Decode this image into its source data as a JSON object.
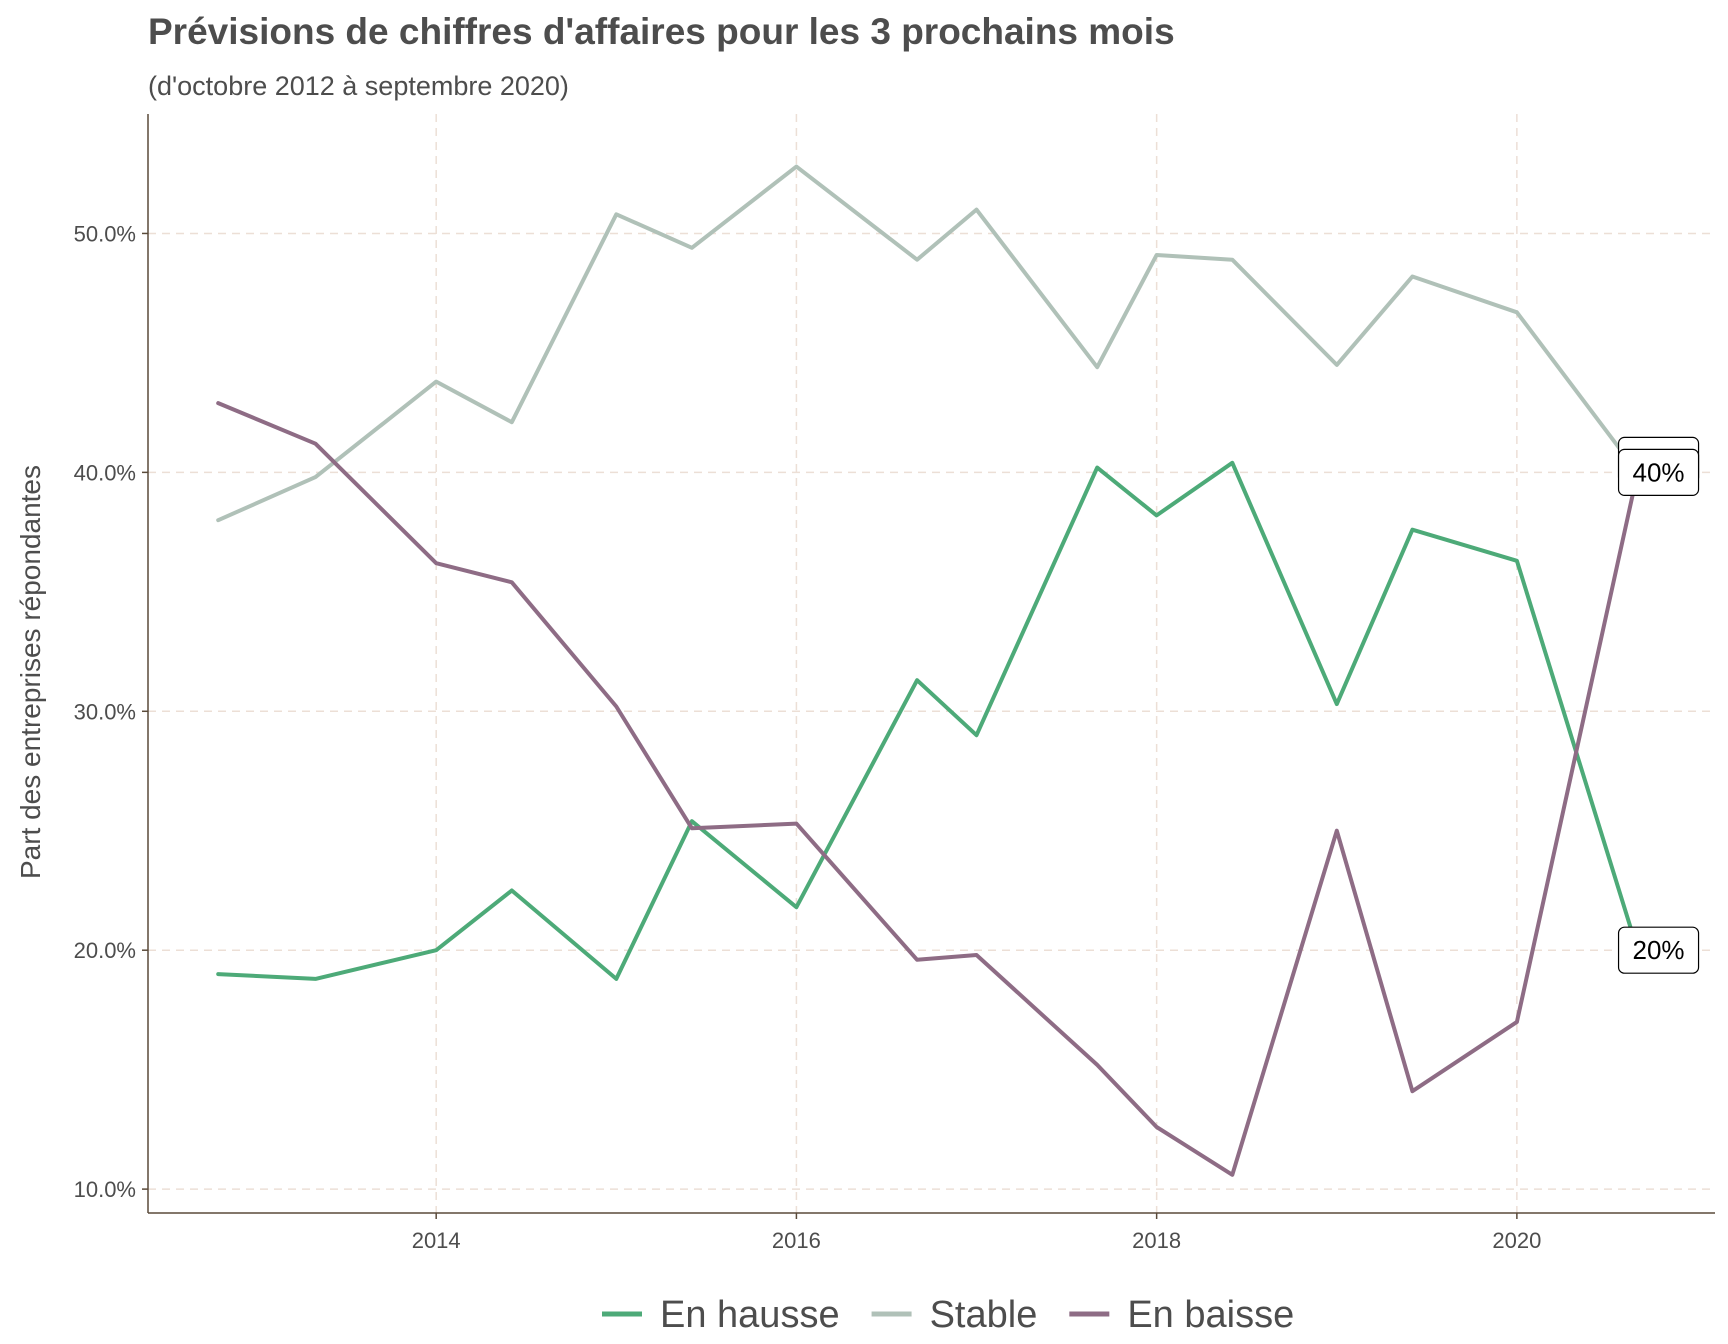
{
  "chart_data": {
    "type": "line",
    "title": "Prévisions de chiffres d'affaires pour les 3 prochains mois",
    "subtitle": "(d'octobre 2012 à septembre 2020)",
    "xlabel": "",
    "ylabel": "Part des entreprises répondantes",
    "xlim": [
      2012.4,
      2021.1
    ],
    "ylim": [
      9.0,
      55.0
    ],
    "x_ticks": [
      2014,
      2016,
      2018,
      2020
    ],
    "x_tick_labels": [
      "2014",
      "2016",
      "2018",
      "2020"
    ],
    "y_ticks": [
      10,
      20,
      30,
      40,
      50
    ],
    "y_tick_labels": [
      "10.0%",
      "20.0%",
      "30.0%",
      "40.0%",
      "50.0%"
    ],
    "grid": true,
    "legend_position": "bottom",
    "x": [
      2012.79,
      2013.33,
      2014.0,
      2014.42,
      2015.0,
      2015.42,
      2016.0,
      2016.67,
      2017.0,
      2017.67,
      2018.0,
      2018.42,
      2019.0,
      2019.42,
      2020.0,
      2020.67
    ],
    "series": [
      {
        "name": "En hausse",
        "color": "#4daa78",
        "values": [
          19.0,
          18.8,
          20.0,
          22.5,
          18.8,
          25.4,
          21.8,
          31.3,
          29.0,
          40.2,
          38.2,
          40.4,
          30.3,
          37.6,
          36.3,
          20.0
        ]
      },
      {
        "name": "Stable",
        "color": "#b0c1b8",
        "values": [
          38.0,
          39.8,
          43.8,
          42.1,
          50.8,
          49.4,
          52.8,
          48.9,
          51.0,
          44.4,
          49.1,
          48.9,
          44.5,
          48.2,
          46.7,
          40.0
        ]
      },
      {
        "name": "En baisse",
        "color": "#8e6c85",
        "values": [
          42.9,
          41.2,
          36.2,
          35.4,
          30.2,
          25.1,
          25.3,
          19.6,
          19.8,
          15.2,
          12.6,
          10.6,
          25.0,
          14.1,
          17.0,
          40.0
        ]
      }
    ],
    "end_labels": [
      {
        "series": "Stable",
        "x": 2020.67,
        "value": 40.0,
        "text": "40%"
      },
      {
        "series": "En baisse",
        "x": 2020.67,
        "value": 40.0,
        "text": "40%"
      },
      {
        "series": "En hausse",
        "x": 2020.67,
        "value": 20.0,
        "text": "20%"
      }
    ],
    "colors": {
      "grid": "#ecdfd6",
      "axis": "#5a4a3a"
    }
  }
}
